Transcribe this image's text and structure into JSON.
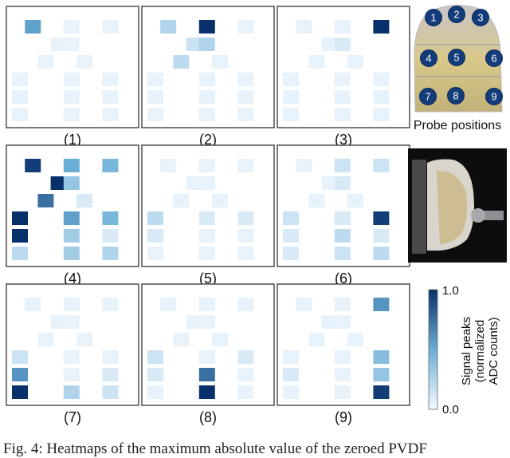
{
  "chart_data": {
    "type": "heatmap",
    "colormap": {
      "low": "#f5f9ff",
      "high": "#08306b"
    },
    "colorbar": {
      "label_lines": [
        "Signal peaks",
        "(normalized",
        "ADC counts)"
      ],
      "max_label": "1.0",
      "min_label": "0.0",
      "range": [
        0.0,
        1.0
      ]
    },
    "pad_positions": [
      [
        0,
        1
      ],
      [
        0,
        4
      ],
      [
        0,
        7
      ],
      [
        1,
        3
      ],
      [
        1,
        4
      ],
      [
        2,
        2
      ],
      [
        2,
        5
      ],
      [
        3,
        0
      ],
      [
        3,
        4
      ],
      [
        3,
        7
      ],
      [
        4,
        0
      ],
      [
        4,
        4
      ],
      [
        4,
        7
      ],
      [
        5,
        0
      ],
      [
        5,
        4
      ],
      [
        5,
        7
      ]
    ],
    "panels": [
      {
        "label": "(1)",
        "values": [
          0.55,
          0.05,
          0.05,
          0.05,
          0.05,
          0.05,
          0.05,
          0.05,
          0.05,
          0.05,
          0.05,
          0.05,
          0.05,
          0.05,
          0.05,
          0.05
        ]
      },
      {
        "label": "(2)",
        "values": [
          0.25,
          1.0,
          0.05,
          0.15,
          0.25,
          0.2,
          0.05,
          0.05,
          0.05,
          0.05,
          0.05,
          0.05,
          0.05,
          0.05,
          0.05,
          0.05
        ]
      },
      {
        "label": "(3)",
        "values": [
          0.05,
          0.05,
          1.0,
          0.05,
          0.1,
          0.05,
          0.05,
          0.05,
          0.05,
          0.05,
          0.05,
          0.05,
          0.05,
          0.05,
          0.05,
          0.05
        ]
      },
      {
        "label": "(4)",
        "values": [
          0.95,
          0.5,
          0.45,
          1.0,
          0.35,
          0.75,
          0.1,
          1.0,
          0.55,
          0.45,
          1.0,
          0.3,
          0.1,
          0.2,
          0.3,
          0.25
        ]
      },
      {
        "label": "(5)",
        "values": [
          0.05,
          0.05,
          0.05,
          0.05,
          0.05,
          0.05,
          0.05,
          0.2,
          0.1,
          0.1,
          0.1,
          0.05,
          0.05,
          0.05,
          0.05,
          0.05
        ]
      },
      {
        "label": "(6)",
        "values": [
          0.05,
          0.15,
          0.15,
          0.05,
          0.1,
          0.05,
          0.05,
          0.15,
          0.1,
          0.95,
          0.1,
          0.2,
          0.1,
          0.1,
          0.15,
          0.2
        ]
      },
      {
        "label": "(7)",
        "values": [
          0.05,
          0.05,
          0.05,
          0.05,
          0.05,
          0.05,
          0.05,
          0.15,
          0.05,
          0.05,
          0.6,
          0.05,
          0.1,
          1.0,
          0.25,
          0.15
        ]
      },
      {
        "label": "(8)",
        "values": [
          0.05,
          0.05,
          0.05,
          0.05,
          0.05,
          0.05,
          0.05,
          0.15,
          0.05,
          0.1,
          0.1,
          0.75,
          0.05,
          0.05,
          1.0,
          0.05
        ]
      },
      {
        "label": "(9)",
        "values": [
          0.05,
          0.05,
          0.6,
          0.05,
          0.05,
          0.05,
          0.05,
          0.05,
          0.05,
          0.4,
          0.1,
          0.05,
          0.35,
          0.05,
          0.05,
          0.95
        ]
      }
    ]
  },
  "probe_panel": {
    "caption": "Probe positions",
    "positions": [
      "1",
      "2",
      "3",
      "4",
      "5",
      "6",
      "7",
      "8",
      "9"
    ]
  },
  "figure_caption": "Fig. 4: Heatmaps of the maximum absolute value of the zeroed PVDF"
}
